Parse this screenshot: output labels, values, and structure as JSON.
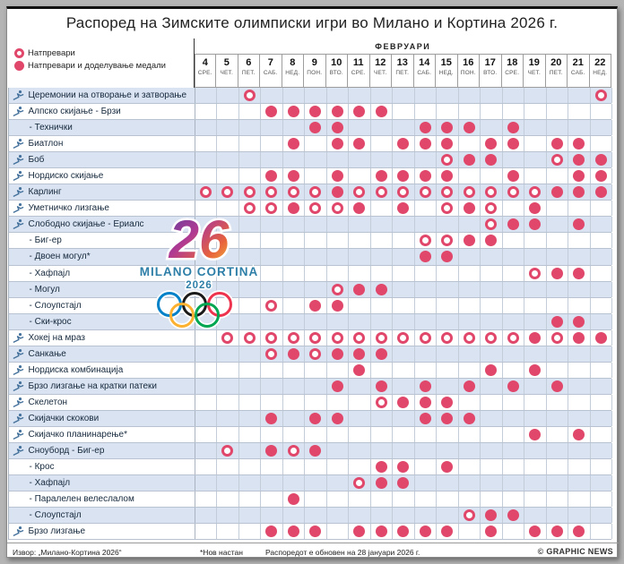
{
  "title": "Распоред на Зимските олимписки игри во Милано и Кортина 2026 г.",
  "legend": {
    "competitions_label": "Натпревари",
    "medals_label": "Натпревари и доделување медали"
  },
  "month_label": "ФЕВРУАРИ",
  "logo": {
    "number": "26",
    "line1": "MILANO CORTINA",
    "line2": "2026"
  },
  "footer": {
    "source": "Извор: „Милано-Кортина 2026“",
    "new_event_note": "*Нов настан",
    "updated_note": "Распоредот е обновен на 28 јануари 2026 г.",
    "credit": "© GRAPHIC NEWS"
  },
  "colors": {
    "dot_red": "#e0476a",
    "row_alt_blue": "#d9e3f2",
    "icon_blue": "#44719b",
    "ring_blue": "#0081c8",
    "ring_yellow": "#fcb131",
    "ring_black": "#1a1a1a",
    "ring_green": "#00a651",
    "ring_red": "#ee334e"
  },
  "chart_data": {
    "type": "table",
    "title": "Распоред на Зимските олимписки игри во Милано и Кортина 2026 г.",
    "month": "ФЕВРУАРИ",
    "legend": {
      "open_circle": "Натпревари",
      "filled_circle": "Натпревари и доделување медали"
    },
    "columns": [
      {
        "date": 4,
        "day": "СРЕ."
      },
      {
        "date": 5,
        "day": "ЧЕТ."
      },
      {
        "date": 6,
        "day": "ПЕТ."
      },
      {
        "date": 7,
        "day": "САБ."
      },
      {
        "date": 8,
        "day": "НЕД."
      },
      {
        "date": 9,
        "day": "ПОН."
      },
      {
        "date": 10,
        "day": "ВТО."
      },
      {
        "date": 11,
        "day": "СРЕ."
      },
      {
        "date": 12,
        "day": "ЧЕТ."
      },
      {
        "date": 13,
        "day": "ПЕТ."
      },
      {
        "date": 14,
        "day": "САБ."
      },
      {
        "date": 15,
        "day": "НЕД."
      },
      {
        "date": 16,
        "day": "ПОН."
      },
      {
        "date": 17,
        "day": "ВТО."
      },
      {
        "date": 18,
        "day": "СРЕ."
      },
      {
        "date": 19,
        "day": "ЧЕТ."
      },
      {
        "date": 20,
        "day": "ПЕТ."
      },
      {
        "date": 21,
        "day": "САБ."
      },
      {
        "date": 22,
        "day": "НЕД."
      }
    ],
    "rows": [
      {
        "label": "Церемонии на отворање и затворање",
        "icon": "ceremonies-icon",
        "indent": false,
        "open": [
          6,
          22
        ],
        "medal": []
      },
      {
        "label": "Алпско скијање - Брзи",
        "icon": "alpine-skiing-icon",
        "indent": false,
        "open": [],
        "medal": [
          7,
          8,
          9,
          10,
          11,
          12
        ]
      },
      {
        "label": "- Технички",
        "icon": null,
        "indent": true,
        "open": [],
        "medal": [
          9,
          10,
          14,
          15,
          16,
          18
        ]
      },
      {
        "label": "Биатлон",
        "icon": "biathlon-icon",
        "indent": false,
        "open": [],
        "medal": [
          8,
          10,
          11,
          13,
          14,
          15,
          17,
          18,
          20,
          21
        ]
      },
      {
        "label": "Боб",
        "icon": "bobsleigh-icon",
        "indent": false,
        "open": [
          15,
          20
        ],
        "medal": [
          16,
          17,
          21,
          22
        ]
      },
      {
        "label": "Нордиско скијање",
        "icon": "cross-country-skiing-icon",
        "indent": false,
        "open": [],
        "medal": [
          7,
          8,
          10,
          12,
          13,
          14,
          15,
          18,
          21,
          22
        ]
      },
      {
        "label": "Карлинг",
        "icon": "curling-icon",
        "indent": false,
        "open": [
          4,
          5,
          6,
          7,
          8,
          9,
          11,
          12,
          13,
          14,
          15,
          16,
          17,
          18,
          19
        ],
        "medal": [
          10,
          20,
          21,
          22
        ]
      },
      {
        "label": "Уметничко лизгање",
        "icon": "figure-skating-icon",
        "indent": false,
        "open": [
          6,
          7,
          9,
          10,
          15,
          17
        ],
        "medal": [
          8,
          11,
          13,
          16,
          19
        ]
      },
      {
        "label": "Слободно скијање - Ериалс",
        "icon": "freestyle-skiing-icon",
        "indent": false,
        "open": [
          17
        ],
        "medal": [
          18,
          19,
          21
        ]
      },
      {
        "label": "- Биг-ер",
        "icon": null,
        "indent": true,
        "open": [
          14,
          15
        ],
        "medal": [
          16,
          17
        ]
      },
      {
        "label": "- Двоен могул*",
        "icon": null,
        "indent": true,
        "open": [],
        "medal": [
          14,
          15
        ]
      },
      {
        "label": "- Хафпајл",
        "icon": null,
        "indent": true,
        "open": [
          19
        ],
        "medal": [
          20,
          21
        ]
      },
      {
        "label": "- Могул",
        "icon": null,
        "indent": true,
        "open": [
          10
        ],
        "medal": [
          11,
          12
        ]
      },
      {
        "label": "- Слоупстајл",
        "icon": null,
        "indent": true,
        "open": [
          7
        ],
        "medal": [
          9,
          10
        ]
      },
      {
        "label": "- Ски-крос",
        "icon": null,
        "indent": true,
        "open": [],
        "medal": [
          20,
          21
        ]
      },
      {
        "label": "Хокеј на мраз",
        "icon": "ice-hockey-icon",
        "indent": false,
        "open": [
          5,
          6,
          7,
          8,
          9,
          10,
          11,
          12,
          13,
          14,
          15,
          16,
          17,
          18,
          20
        ],
        "medal": [
          19,
          21,
          22
        ]
      },
      {
        "label": "Санкање",
        "icon": "luge-icon",
        "indent": false,
        "open": [
          7,
          9
        ],
        "medal": [
          8,
          10,
          11,
          12
        ]
      },
      {
        "label": "Нордиска комбинација",
        "icon": "nordic-combined-icon",
        "indent": false,
        "open": [],
        "medal": [
          11,
          17,
          19
        ]
      },
      {
        "label": "Брзо лизгање на кратки патеки",
        "icon": "short-track-icon",
        "indent": false,
        "open": [],
        "medal": [
          10,
          12,
          14,
          16,
          18,
          20
        ]
      },
      {
        "label": "Скелетон",
        "icon": "skeleton-icon",
        "indent": false,
        "open": [
          12
        ],
        "medal": [
          13,
          14,
          15
        ]
      },
      {
        "label": "Скијачки скокови",
        "icon": "ski-jumping-icon",
        "indent": false,
        "open": [],
        "medal": [
          7,
          9,
          10,
          14,
          15,
          16
        ]
      },
      {
        "label": "Скијачко планинарење*",
        "icon": "ski-mountaineering-icon",
        "indent": false,
        "open": [],
        "medal": [
          19,
          21
        ]
      },
      {
        "label": "Сноуборд - Биг-ер",
        "icon": "snowboard-icon",
        "indent": false,
        "open": [
          5,
          8
        ],
        "medal": [
          7,
          9
        ]
      },
      {
        "label": "- Крос",
        "icon": null,
        "indent": true,
        "open": [],
        "medal": [
          12,
          13,
          15
        ]
      },
      {
        "label": "- Хафпајл",
        "icon": null,
        "indent": true,
        "open": [
          11
        ],
        "medal": [
          12,
          13
        ]
      },
      {
        "label": "- Паралелен велеслалом",
        "icon": null,
        "indent": true,
        "open": [],
        "medal": [
          8
        ]
      },
      {
        "label": "- Слоупстајл",
        "icon": null,
        "indent": true,
        "open": [
          16
        ],
        "medal": [
          17,
          18
        ]
      },
      {
        "label": "Брзо лизгање",
        "icon": "speed-skating-icon",
        "indent": false,
        "open": [],
        "medal": [
          7,
          8,
          9,
          11,
          12,
          13,
          14,
          15,
          17,
          19,
          20,
          21
        ]
      }
    ]
  }
}
